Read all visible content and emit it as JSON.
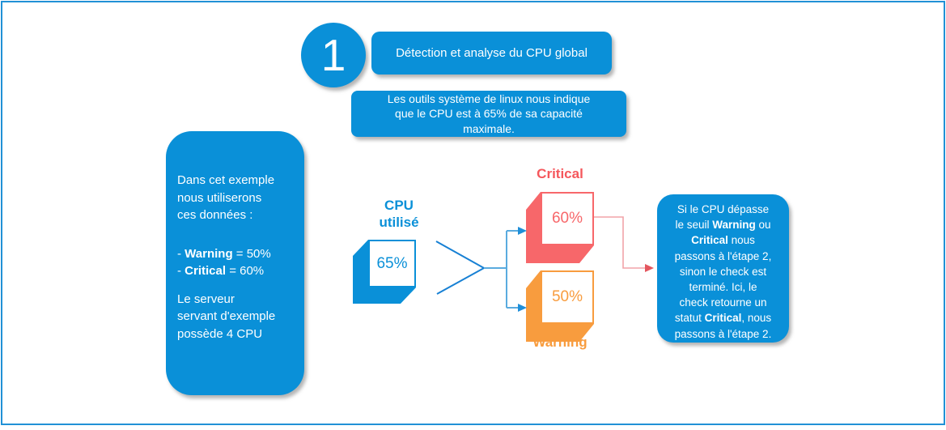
{
  "step_badge": {
    "number": "1"
  },
  "header": {
    "title": "Détection et analyse du CPU global",
    "subtitle_lines": [
      "Les outils système de linux nous indique",
      "que le CPU est à 65% de sa capacité",
      "maximale."
    ]
  },
  "example_panel": {
    "intro_lines": [
      "Dans cet exemple",
      "nous utiliserons",
      "ces données :"
    ],
    "bullet_lines": [
      [
        {
          "text": "- "
        },
        {
          "text": "Warning",
          "bold": true
        },
        {
          "text": " = 50%"
        }
      ],
      [
        {
          "text": "- "
        },
        {
          "text": "Critical",
          "bold": true
        },
        {
          "text": " = 60%"
        }
      ]
    ],
    "note_lines": [
      "Le serveur",
      "servant d'exemple",
      "possède 4 CPU"
    ]
  },
  "diagram": {
    "cpu_label_lines": [
      "CPU",
      "utilisé"
    ],
    "cpu_value": "65%",
    "critical_label": "Critical",
    "critical_value": "60%",
    "warning_label": "Warning",
    "warning_value": "50%"
  },
  "result_panel": {
    "lines": [
      [
        {
          "text": "Si le CPU dépasse"
        }
      ],
      [
        {
          "text": "le seuil "
        },
        {
          "text": "Warning",
          "bold": true
        },
        {
          "text": " ou"
        }
      ],
      [
        {
          "text": "Critical",
          "bold": true
        },
        {
          "text": " nous"
        }
      ],
      [
        {
          "text": "passons à l'étape 2,"
        }
      ],
      [
        {
          "text": "sinon le check est"
        }
      ],
      [
        {
          "text": "terminé. Ici, le"
        }
      ],
      [
        {
          "text": "check retourne un"
        }
      ],
      [
        {
          "text": "statut "
        },
        {
          "text": "Critical",
          "bold": true
        },
        {
          "text": ", nous"
        }
      ],
      [
        {
          "text": "passons à l'étape 2."
        }
      ]
    ]
  },
  "colors": {
    "primary_blue": "#0a90d8",
    "frame_blue": "#2191d6",
    "critical_red": "#f7676a",
    "critical_label_red": "#f5575c",
    "warning_orange": "#f89c3e",
    "connector_blue": "#1780d4",
    "connector_light_blue": "#5aabdf",
    "connector_pink": "#f2a3a8",
    "arrow_red": "#e4565e"
  }
}
